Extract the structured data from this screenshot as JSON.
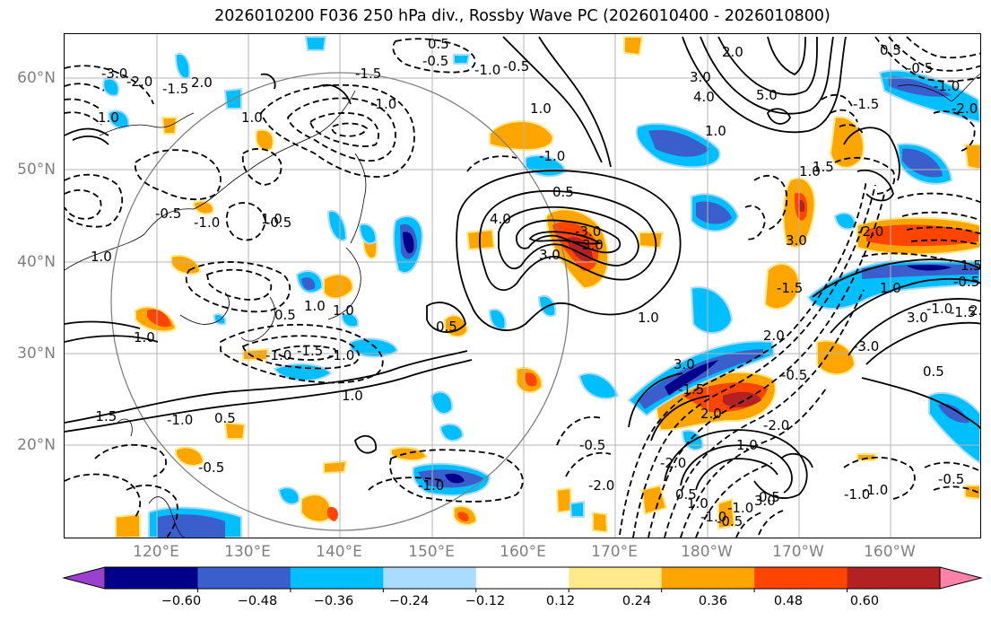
{
  "title": "2026010200 F036 250 hPa div., Rossby Wave PC (2026010400 - 2026010800)",
  "lat_labels": [
    "60°N",
    "50°N",
    "40°N",
    "30°N",
    "20°N"
  ],
  "lon_labels": [
    "120°E",
    "130°E",
    "140°E",
    "150°E",
    "160°E",
    "170°E",
    "180°W",
    "170°W",
    "160°W"
  ],
  "colorbar": {
    "tick_labels": [
      "−0.60",
      "−0.48",
      "−0.36",
      "−0.24",
      "−0.12",
      "0.12",
      "0.24",
      "0.36",
      "0.48",
      "0.60"
    ],
    "colors": [
      "#9b3fcf",
      "#00008b",
      "#3a5fcd",
      "#00bfff",
      "#aadcff",
      "#ffffff",
      "#ffe98a",
      "#ffa500",
      "#ff4500",
      "#b22222",
      "#ff82ab"
    ]
  },
  "contour_labels": [
    "-3.0",
    "-2.0",
    "-1.5",
    "2.0",
    "-1.5",
    "-1.0",
    "0.5",
    "-0.5",
    "-1.0",
    "-0.5",
    "1.0",
    "3.0",
    "4.0",
    "5.0",
    "2.0",
    "1.0",
    "0.5",
    "-0.5",
    "-1.0",
    "-1.5",
    "-2.0",
    "4.0",
    "3.0",
    "3.0",
    "-1.0",
    "0.5",
    "1.0",
    "-2.0",
    "3.0",
    "-1.5",
    "1.0",
    "1.5",
    "2.0",
    "3.0",
    "-1.0",
    "-1.5",
    "1.0",
    "0.5",
    "-1.0",
    "-0.5",
    "1.0",
    "0.5",
    "-1.0",
    "-0.5",
    "-1.5",
    "-2.0",
    "0.5",
    "1.0",
    "-0.5",
    "-1.0",
    "-2.0",
    "2.0",
    "-2.0",
    "-0.5",
    "3.0",
    "-3.0",
    "2.0",
    "1.5",
    "-0.5",
    "-0.5",
    "-1.0",
    "1.0",
    "-0.5",
    "0.5",
    "-1.0",
    "1.0",
    "-1.0",
    "0.5",
    "-1.0",
    "-0.5",
    "-1.5",
    "1.0",
    "1.0",
    "1.0",
    "1.0",
    "1.0",
    "1.0",
    "0.5",
    "-3.0",
    "-1.0",
    "-1.5",
    "3.0",
    "-1.0"
  ]
}
